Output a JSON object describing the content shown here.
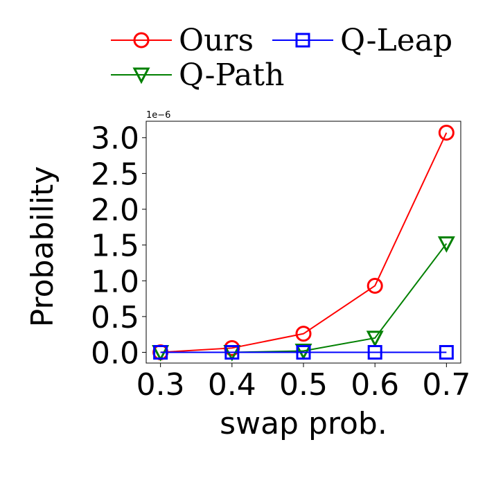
{
  "chart_data": {
    "type": "line",
    "title": "",
    "xlabel": "swap prob.",
    "ylabel": "Probability",
    "y_offset_label": "1e−6",
    "x_ticks": [
      "0.3",
      "0.4",
      "0.5",
      "0.6",
      "0.7"
    ],
    "y_ticks": [
      "0.0",
      "0.5",
      "1.0",
      "1.5",
      "2.0",
      "2.5",
      "3.0"
    ],
    "xlim": [
      0.28,
      0.72
    ],
    "ylim": [
      -0.15,
      3.23
    ],
    "y_scale_note": "values in units of 1e-6",
    "grid": false,
    "legend_position": "top",
    "x": [
      0.3,
      0.4,
      0.5,
      0.6,
      0.7
    ],
    "series": [
      {
        "name": "Ours",
        "color": "#ff0000",
        "marker": "circle",
        "values": [
          0.0,
          0.06,
          0.26,
          0.93,
          3.07
        ]
      },
      {
        "name": "Q-Leap",
        "color": "#0000ff",
        "marker": "square",
        "values": [
          0.0,
          0.0,
          0.0,
          0.0,
          0.0
        ]
      },
      {
        "name": "Q-Path",
        "color": "#008000",
        "marker": "triangle-down",
        "values": [
          0.0,
          0.0,
          0.02,
          0.2,
          1.52
        ]
      }
    ]
  }
}
